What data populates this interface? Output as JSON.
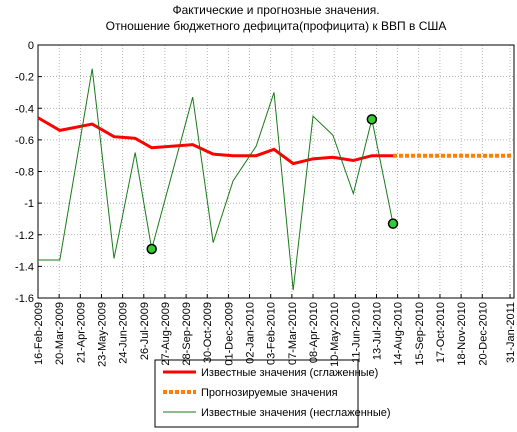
{
  "chart_data": {
    "type": "line",
    "title": [
      "Фактические и прогнозные значения.",
      "Отношение бюджетного дефицита(профицита) к ВВП в США"
    ],
    "xlim": [
      "2009-02-16",
      "2011-02-06"
    ],
    "xticks": [
      {
        "value": "2009-02-16",
        "label": "16-Feb-2009"
      },
      {
        "value": "2009-03-20",
        "label": "20-Mar-2009"
      },
      {
        "value": "2009-04-21",
        "label": "21-Apr-2009"
      },
      {
        "value": "2009-05-23",
        "label": "23-May-2009"
      },
      {
        "value": "2009-06-24",
        "label": "24-Jun-2009"
      },
      {
        "value": "2009-07-26",
        "label": "26-Jul-2009"
      },
      {
        "value": "2009-08-27",
        "label": "27-Aug-2009"
      },
      {
        "value": "2009-09-28",
        "label": "28-Sep-2009"
      },
      {
        "value": "2009-10-30",
        "label": "30-Oct-2009"
      },
      {
        "value": "2009-12-01",
        "label": "01-Dec-2009"
      },
      {
        "value": "2010-01-02",
        "label": "02-Jan-2010"
      },
      {
        "value": "2010-02-03",
        "label": "03-Feb-2010"
      },
      {
        "value": "2010-03-07",
        "label": "07-Mar-2010"
      },
      {
        "value": "2010-04-08",
        "label": "08-Apr-2010"
      },
      {
        "value": "2010-05-10",
        "label": "10-May-2010"
      },
      {
        "value": "2010-06-11",
        "label": "11-Jun-2010"
      },
      {
        "value": "2010-07-13",
        "label": "13-Jul-2010"
      },
      {
        "value": "2010-08-14",
        "label": "14-Aug-2010"
      },
      {
        "value": "2010-09-15",
        "label": "15-Sep-2010"
      },
      {
        "value": "2010-10-17",
        "label": "17-Oct-2010"
      },
      {
        "value": "2010-11-18",
        "label": "18-Nov-2010"
      },
      {
        "value": "2010-12-20",
        "label": "20-Dec-2010"
      },
      {
        "value": "2011-01-31",
        "label": "31-Jan-2011"
      }
    ],
    "ylim": [
      -1.6,
      0
    ],
    "yticks": [
      0,
      -0.2,
      -0.4,
      -0.6,
      -0.8,
      -1,
      -1.2,
      -1.4,
      -1.6
    ],
    "grid": true,
    "series": [
      {
        "name": "Известные значения (сглаженные)",
        "color": "#ff0000",
        "width": 3,
        "x": [
          "2009-02-16",
          "2009-03-21",
          "2009-05-09",
          "2009-06-11",
          "2009-07-13",
          "2009-08-07",
          "2009-10-08",
          "2009-11-08",
          "2009-12-08",
          "2010-01-12",
          "2010-02-08",
          "2010-03-09",
          "2010-04-08",
          "2010-05-08",
          "2010-06-08",
          "2010-07-06",
          "2010-08-07"
        ],
        "values": [
          -0.46,
          -0.54,
          -0.5,
          -0.58,
          -0.59,
          -0.65,
          -0.63,
          -0.69,
          -0.7,
          -0.7,
          -0.66,
          -0.75,
          -0.72,
          -0.71,
          -0.73,
          -0.7,
          -0.7
        ]
      },
      {
        "name": "Прогнозируемые значения",
        "color": "#ff8000",
        "width": 4,
        "dashed": true,
        "x": [
          "2010-08-07",
          "2011-02-06"
        ],
        "values": [
          -0.7,
          -0.7
        ]
      },
      {
        "name": "Известные значения (несглаженные)",
        "color": "#1a7a1a",
        "width": 1,
        "x": [
          "2009-02-16",
          "2009-03-21",
          "2009-05-09",
          "2009-06-11",
          "2009-07-13",
          "2009-08-07",
          "2009-10-08",
          "2009-11-08",
          "2009-12-08",
          "2010-01-12",
          "2010-02-08",
          "2010-03-09",
          "2010-04-08",
          "2010-05-08",
          "2010-06-08",
          "2010-07-06",
          "2010-08-07"
        ],
        "values": [
          -1.36,
          -1.36,
          -0.15,
          -1.35,
          -0.68,
          -1.29,
          -0.33,
          -1.25,
          -0.86,
          -0.64,
          -0.3,
          -1.55,
          -0.45,
          -0.57,
          -0.94,
          -0.47,
          -1.13
        ],
        "highlight_points": [
          5,
          15,
          16
        ]
      }
    ]
  }
}
